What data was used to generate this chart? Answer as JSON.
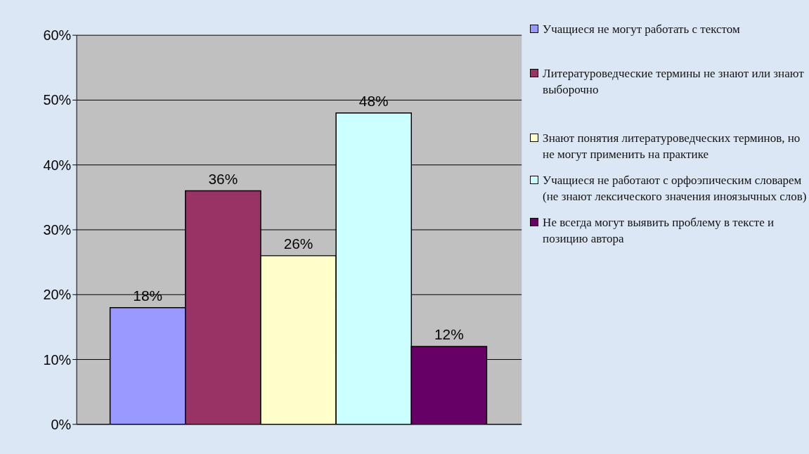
{
  "chart_data": {
    "type": "bar",
    "categories": [
      null
    ],
    "series": [
      {
        "name": "Учащиеся не могут работать с текстом",
        "color": "#9999ff",
        "values": [
          18
        ],
        "value_labels": [
          "18%"
        ]
      },
      {
        "name": "Литературоведческие термины не знают или знают выборочно",
        "color": "#993366",
        "values": [
          36
        ],
        "value_labels": [
          "36%"
        ]
      },
      {
        "name": "Знают понятия литературоведческих терминов, но не могут применить на практике",
        "color": "#ffffcc",
        "values": [
          26
        ],
        "value_labels": [
          "26%"
        ]
      },
      {
        "name": "Учащиеся не работают с орфоэпическим словарем (не знают лексического значения иноязычных слов)",
        "color": "#ccffff",
        "values": [
          48
        ],
        "value_labels": [
          "48%"
        ]
      },
      {
        "name": "Не всегда могут выявить проблему в тексте и позицию автора",
        "color": "#660066",
        "values": [
          12
        ],
        "value_labels": [
          "12%"
        ]
      }
    ],
    "ylim": [
      0,
      60
    ],
    "yticks": [
      {
        "value": 0,
        "label": "0%"
      },
      {
        "value": 10,
        "label": "10%"
      },
      {
        "value": 20,
        "label": "20%"
      },
      {
        "value": 30,
        "label": "30%"
      },
      {
        "value": 40,
        "label": "40%"
      },
      {
        "value": 50,
        "label": "50%"
      },
      {
        "value": 60,
        "label": "60%"
      }
    ],
    "grid": "y",
    "legend": "right"
  }
}
